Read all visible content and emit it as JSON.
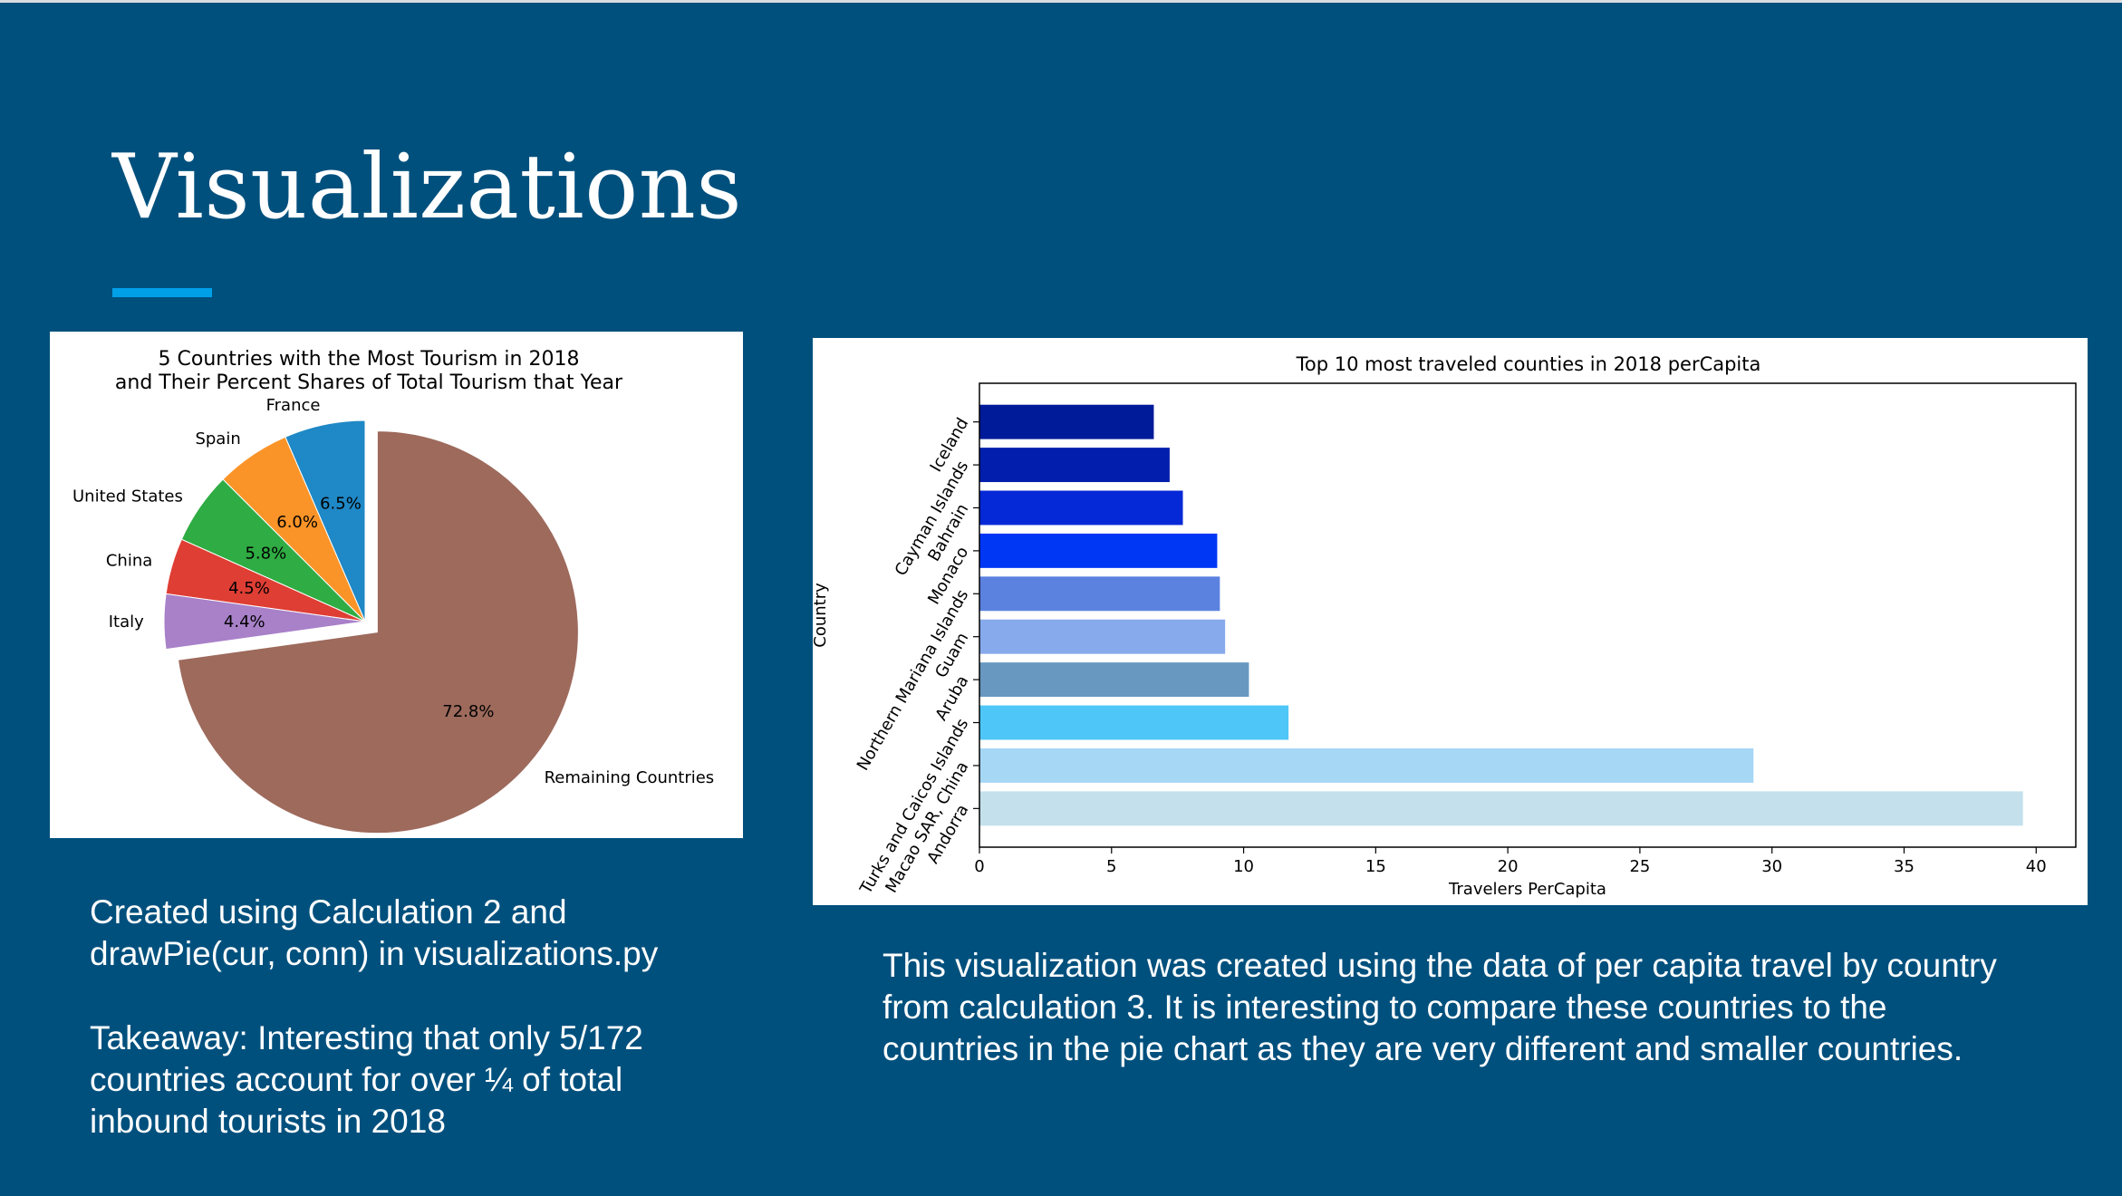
{
  "slide": {
    "title": "Visualizations",
    "background_color": "#00507d",
    "accent_color": "#00a0e9"
  },
  "captions": {
    "pie_caption": "Created using Calculation 2 and drawPie(cur, conn) in visualizations.py",
    "pie_takeaway": "Takeaway: Interesting that only 5/172 countries account for over ¼ of total inbound tourists in 2018",
    "bar_caption": "This visualization was created using the data of per capita travel by country from calculation 3. It is interesting to compare these countries to the countries in the pie chart as they are very different and smaller countries."
  },
  "chart_data": [
    {
      "type": "pie",
      "title": "5 Countries with the Most Tourism in 2018\nand Their Percent Shares of Total Tourism that Year",
      "start_angle": 90,
      "exploded_slice": "Remaining Countries",
      "slices": [
        {
          "label": "France",
          "value": 6.5,
          "pct_label": "6.5%",
          "color": "#1f88c6"
        },
        {
          "label": "Spain",
          "value": 6.0,
          "pct_label": "6.0%",
          "color": "#fb9428"
        },
        {
          "label": "United States",
          "value": 5.8,
          "pct_label": "5.8%",
          "color": "#2fac43"
        },
        {
          "label": "China",
          "value": 4.5,
          "pct_label": "4.5%",
          "color": "#df3e34"
        },
        {
          "label": "Italy",
          "value": 4.4,
          "pct_label": "4.4%",
          "color": "#a881c9"
        },
        {
          "label": "Remaining Countries",
          "value": 72.8,
          "pct_label": "72.8%",
          "color": "#9d6a5c"
        }
      ]
    },
    {
      "type": "bar",
      "orientation": "horizontal",
      "title": "Top 10 most traveled counties in 2018 perCapita",
      "xlabel": "Travelers PerCapita",
      "ylabel": "Country",
      "xlim": [
        0,
        41.5
      ],
      "xticks": [
        0,
        5,
        10,
        15,
        20,
        25,
        30,
        35,
        40
      ],
      "categories": [
        "Andorra",
        "Macao SAR, China",
        "Turks and Caicos Islands",
        "Aruba",
        "Guam",
        "Northern Mariana Islands",
        "Monaco",
        "Bahrain",
        "Cayman Islands",
        "Iceland"
      ],
      "values": [
        39.5,
        29.3,
        11.7,
        10.2,
        9.3,
        9.1,
        9.0,
        7.7,
        7.2,
        6.6
      ],
      "colors": [
        "#c3e0ec",
        "#a6d7f5",
        "#4ec6f7",
        "#6898c0",
        "#86aaeb",
        "#5c82e0",
        "#0037f5",
        "#0529d7",
        "#021ead",
        "#001b99"
      ]
    }
  ]
}
